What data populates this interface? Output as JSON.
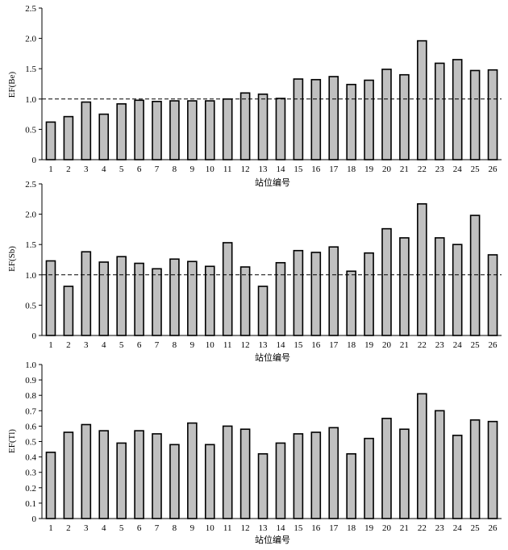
{
  "chart_data": [
    {
      "type": "bar",
      "title": "",
      "ylabel": "EF(Be)",
      "xlabel": "站位编号",
      "categories": [
        "1",
        "2",
        "3",
        "4",
        "5",
        "6",
        "7",
        "8",
        "9",
        "10",
        "11",
        "12",
        "13",
        "14",
        "15",
        "16",
        "17",
        "18",
        "19",
        "20",
        "21",
        "22",
        "23",
        "24",
        "25",
        "26"
      ],
      "values": [
        0.62,
        0.71,
        0.95,
        0.75,
        0.92,
        0.98,
        0.96,
        0.97,
        0.97,
        0.97,
        1.0,
        1.1,
        1.08,
        1.01,
        1.33,
        1.32,
        1.37,
        1.24,
        1.31,
        1.49,
        1.4,
        1.96,
        1.59,
        1.65,
        1.47,
        1.48
      ],
      "ylim": [
        0,
        2.5
      ],
      "yticks": [
        "0",
        "0.5",
        "1.0",
        "1.5",
        "2.0",
        "2.5"
      ],
      "ytick_values": [
        0,
        0.5,
        1.0,
        1.5,
        2.0,
        2.5
      ],
      "reference_line": 1.0,
      "bar_color": "#c0c0c0"
    },
    {
      "type": "bar",
      "title": "",
      "ylabel": "EF(Sb)",
      "xlabel": "站位编号",
      "categories": [
        "1",
        "2",
        "3",
        "4",
        "5",
        "6",
        "7",
        "8",
        "9",
        "10",
        "11",
        "12",
        "13",
        "14",
        "15",
        "16",
        "17",
        "18",
        "19",
        "20",
        "21",
        "22",
        "23",
        "24",
        "25",
        "26"
      ],
      "values": [
        1.23,
        0.81,
        1.38,
        1.21,
        1.3,
        1.19,
        1.1,
        1.26,
        1.22,
        1.14,
        1.53,
        1.13,
        0.81,
        1.2,
        1.4,
        1.37,
        1.46,
        1.06,
        1.36,
        1.76,
        1.61,
        2.17,
        1.61,
        1.5,
        1.98,
        1.33
      ],
      "ylim": [
        0,
        2.5
      ],
      "yticks": [
        "0",
        "0.5",
        "1.0",
        "1.5",
        "2.0",
        "2.5"
      ],
      "ytick_values": [
        0,
        0.5,
        1.0,
        1.5,
        2.0,
        2.5
      ],
      "reference_line": 1.0,
      "bar_color": "#c0c0c0"
    },
    {
      "type": "bar",
      "title": "",
      "ylabel": "EF(Tl)",
      "xlabel": "站位编号",
      "categories": [
        "1",
        "2",
        "3",
        "4",
        "5",
        "6",
        "7",
        "8",
        "9",
        "10",
        "11",
        "12",
        "13",
        "14",
        "15",
        "16",
        "17",
        "18",
        "19",
        "20",
        "21",
        "22",
        "23",
        "24",
        "25",
        "26"
      ],
      "values": [
        0.43,
        0.56,
        0.61,
        0.57,
        0.49,
        0.57,
        0.55,
        0.48,
        0.62,
        0.48,
        0.6,
        0.58,
        0.42,
        0.49,
        0.55,
        0.56,
        0.59,
        0.42,
        0.52,
        0.65,
        0.58,
        0.81,
        0.7,
        0.54,
        0.64,
        0.63
      ],
      "ylim": [
        0,
        1.0
      ],
      "yticks": [
        "0",
        "0.1",
        "0.2",
        "0.3",
        "0.4",
        "0.5",
        "0.6",
        "0.7",
        "0.8",
        "0.9",
        "1.0"
      ],
      "ytick_values": [
        0,
        0.1,
        0.2,
        0.3,
        0.4,
        0.5,
        0.6,
        0.7,
        0.8,
        0.9,
        1.0
      ],
      "reference_line": null,
      "bar_color": "#c0c0c0"
    }
  ]
}
